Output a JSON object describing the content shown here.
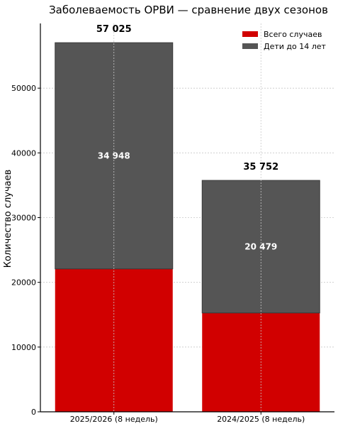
{
  "chart_data": {
    "type": "bar",
    "title": "Заболеваемость ОРВИ — сравнение двух сезонов",
    "xlabel": "",
    "ylabel": "Количество случаев",
    "categories": [
      "2025/2026 (8 недель)",
      "2024/2025 (8 недель)"
    ],
    "series": [
      {
        "name": "Всего случаев",
        "values": [
          22077,
          15273
        ],
        "color": "#d10000"
      },
      {
        "name": "Дети до 14 лет",
        "values": [
          34948,
          20479
        ],
        "color": "#555555"
      }
    ],
    "totals": [
      57025,
      35752
    ],
    "total_labels": [
      "57 025",
      "35 752"
    ],
    "segment_labels": [
      "34 948",
      "20 479"
    ],
    "ylim": [
      0,
      60000
    ],
    "yticks": [
      0,
      10000,
      20000,
      30000,
      40000,
      50000
    ],
    "ytick_labels": [
      "0",
      "10000",
      "20000",
      "30000",
      "40000",
      "50000"
    ],
    "grid": true,
    "legend_position": "top-right"
  }
}
